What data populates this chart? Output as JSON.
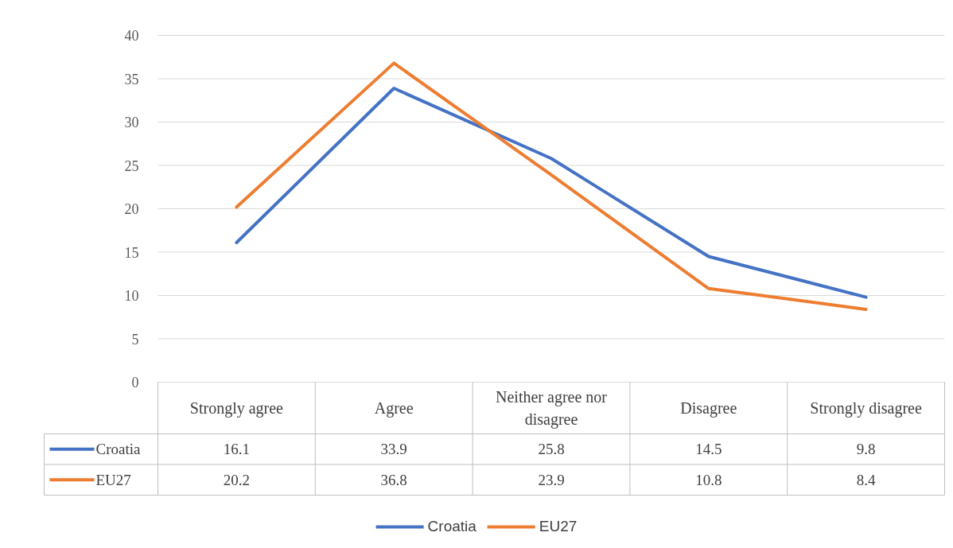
{
  "chart_data": {
    "type": "line",
    "categories": [
      "Strongly agree",
      "Agree",
      "Neither agree nor disagree",
      "Disagree",
      "Strongly disagree"
    ],
    "series": [
      {
        "name": "Croatia",
        "color": "#4472c4",
        "values": [
          16.1,
          33.9,
          25.8,
          14.5,
          9.8
        ]
      },
      {
        "name": "EU27",
        "color": "#ed7d31",
        "values": [
          20.2,
          36.8,
          23.9,
          10.8,
          8.4
        ]
      }
    ],
    "ylim": [
      0,
      40
    ],
    "yticks": [
      0,
      5,
      10,
      15,
      20,
      25,
      30,
      35,
      40
    ],
    "grid": "y",
    "legend": "bottom",
    "data_labels": true,
    "line_style": "solid",
    "marker": "none"
  }
}
